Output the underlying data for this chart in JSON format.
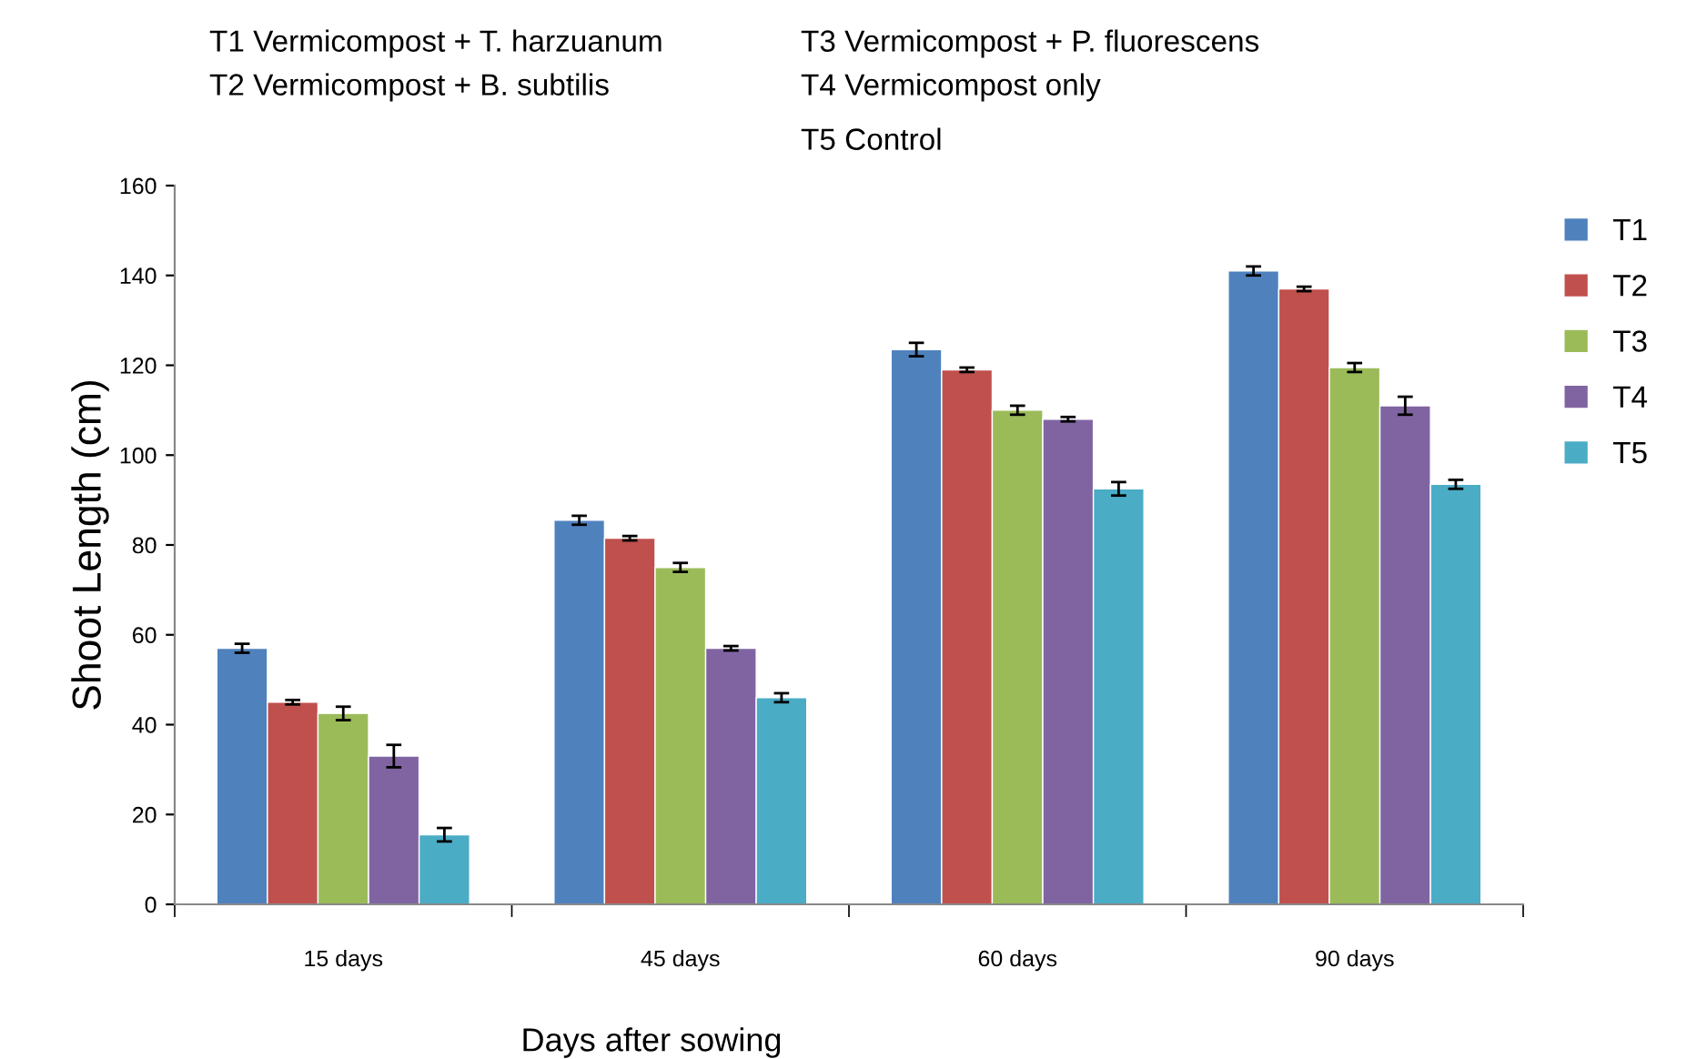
{
  "chart_data": {
    "type": "bar",
    "xlabel": "Days after sowing",
    "ylabel": "Shoot Length (cm)",
    "categories": [
      "15 days",
      "45 days",
      "60 days",
      "90 days"
    ],
    "series": [
      {
        "name": "T1",
        "color": "#4f81bd",
        "values": [
          57,
          85.5,
          123.5,
          141
        ],
        "errors": [
          1,
          1,
          1.5,
          1
        ]
      },
      {
        "name": "T2",
        "color": "#c0504d",
        "values": [
          45,
          81.5,
          119,
          137
        ],
        "errors": [
          0.5,
          0.5,
          0.5,
          0.5
        ]
      },
      {
        "name": "T3",
        "color": "#9bbb59",
        "values": [
          42.5,
          75,
          110,
          119.5
        ],
        "errors": [
          1.5,
          1,
          1,
          1
        ]
      },
      {
        "name": "T4",
        "color": "#8064a2",
        "values": [
          33,
          57,
          108,
          111
        ],
        "errors": [
          2.5,
          0.5,
          0.5,
          2
        ]
      },
      {
        "name": "T5",
        "color": "#4bacc6",
        "values": [
          15.5,
          46,
          92.5,
          93.5
        ],
        "errors": [
          1.5,
          1,
          1.5,
          1
        ]
      }
    ],
    "ylim": [
      0,
      160
    ],
    "yticks": [
      0,
      20,
      40,
      60,
      80,
      100,
      120,
      140,
      160
    ],
    "grid": false,
    "legend": "right",
    "annotations": [
      "T1 Vermicompost + T. harzuanum",
      "T2 Vermicompost + B. subtilis",
      "T3 Vermicompost + P. fluorescens",
      "T4 Vermicompost only",
      "T5 Control"
    ]
  }
}
